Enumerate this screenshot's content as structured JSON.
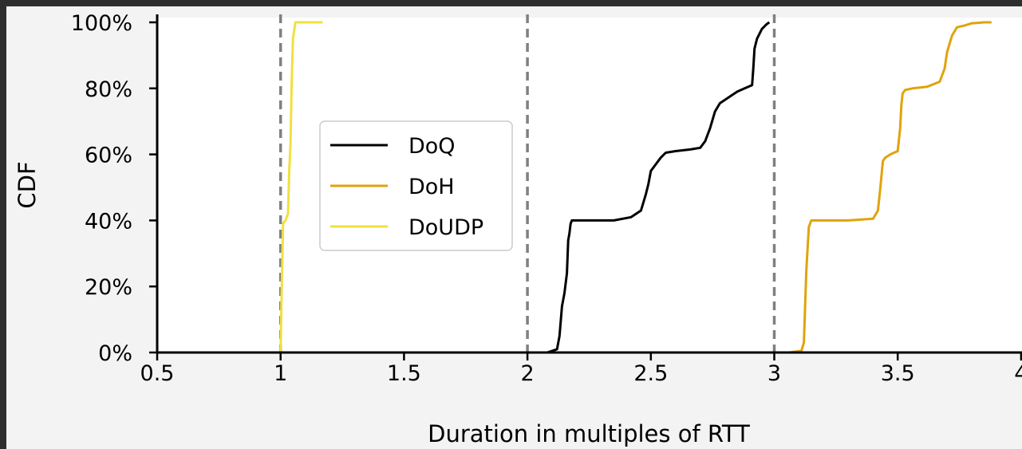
{
  "chart_data": {
    "type": "line",
    "title": "",
    "xlabel": "Duration in multiples of RTT",
    "ylabel": "CDF",
    "xlim": [
      0.5,
      4.0
    ],
    "ylim": [
      0,
      100
    ],
    "xticks": [
      "0.5",
      "1",
      "1.5",
      "2",
      "2.5",
      "3",
      "3.5",
      "4"
    ],
    "yticks": [
      "0%",
      "20%",
      "40%",
      "60%",
      "80%",
      "100%"
    ],
    "reference_lines_x": [
      1,
      2,
      3
    ],
    "grid": false,
    "legend_position": "center-left",
    "series": [
      {
        "name": "DoQ",
        "color": "#000000",
        "x": [
          2.08,
          2.12,
          2.13,
          2.14,
          2.15,
          2.16,
          2.165,
          2.17,
          2.175,
          2.18,
          2.25,
          2.35,
          2.42,
          2.46,
          2.48,
          2.49,
          2.5,
          2.52,
          2.54,
          2.56,
          2.6,
          2.66,
          2.7,
          2.72,
          2.74,
          2.76,
          2.78,
          2.8,
          2.85,
          2.88,
          2.91,
          2.915,
          2.92,
          2.93,
          2.95,
          2.97,
          2.98
        ],
        "y": [
          0,
          1,
          5,
          14,
          18,
          24,
          34,
          36,
          39,
          40,
          40,
          40,
          41,
          43,
          48,
          51,
          55,
          57,
          59,
          60.5,
          61,
          61.5,
          62,
          64,
          68,
          73,
          75.5,
          76.5,
          79,
          80,
          81,
          86,
          92,
          95,
          98,
          99.5,
          100
        ]
      },
      {
        "name": "DoH",
        "color": "#e1a30c",
        "x": [
          3.06,
          3.11,
          3.12,
          3.13,
          3.14,
          3.15,
          3.3,
          3.4,
          3.42,
          3.43,
          3.44,
          3.45,
          3.47,
          3.5,
          3.51,
          3.515,
          3.52,
          3.53,
          3.56,
          3.62,
          3.67,
          3.69,
          3.7,
          3.72,
          3.74,
          3.77,
          3.8,
          3.85,
          3.88
        ],
        "y": [
          0,
          0.5,
          3,
          25,
          38,
          40,
          40,
          40.5,
          43,
          50,
          58,
          59,
          60,
          61,
          68,
          75,
          78.5,
          79.5,
          80,
          80.5,
          82,
          86,
          91,
          96,
          98.5,
          99,
          99.7,
          100,
          100
        ]
      },
      {
        "name": "DoUDP",
        "color": "#f0e040",
        "x": [
          1.0,
          1.005,
          1.01,
          1.02,
          1.03,
          1.035,
          1.04,
          1.045,
          1.05,
          1.06,
          1.08,
          1.1,
          1.17
        ],
        "y": [
          0,
          20,
          39,
          40,
          42,
          55,
          63,
          82,
          95,
          100,
          100,
          100,
          100
        ]
      }
    ]
  }
}
